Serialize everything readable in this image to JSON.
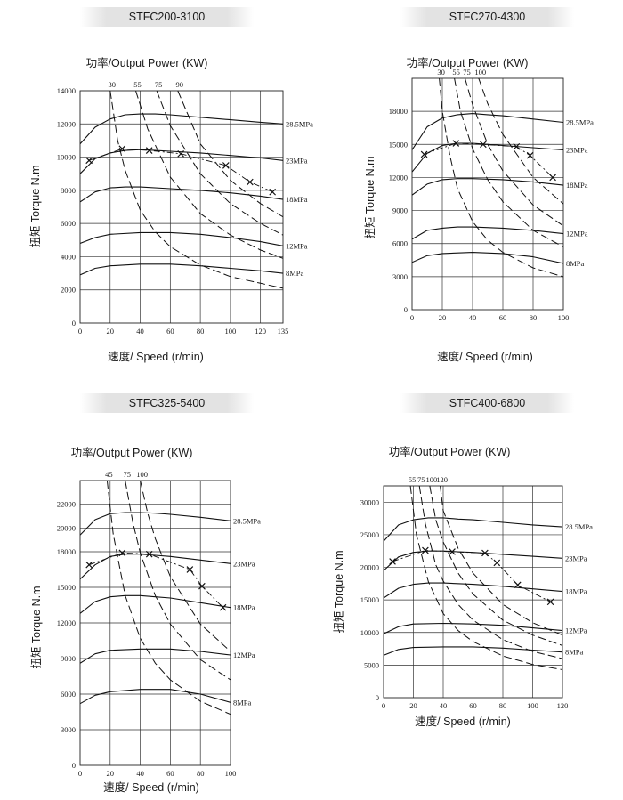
{
  "chart_data": [
    {
      "type": "line",
      "title": "STFC200-3100",
      "subtitle": "功率/Output Power (KW)",
      "xlabel": "速度/ Speed (r/min)",
      "ylabel": "扭矩 Torque N.m",
      "xlim": [
        0,
        135
      ],
      "ylim": [
        0,
        14000
      ],
      "xticks": [
        0,
        20,
        40,
        60,
        80,
        100,
        120,
        135
      ],
      "yticks": [
        0,
        2000,
        4000,
        6000,
        8000,
        10000,
        12000,
        14000
      ],
      "grid": true,
      "pressure_series": [
        {
          "name": "28.5MPa",
          "x": [
            0,
            10,
            20,
            30,
            40,
            50,
            60,
            80,
            100,
            120,
            135
          ],
          "values": [
            10800,
            11800,
            12300,
            12550,
            12600,
            12600,
            12550,
            12400,
            12250,
            12100,
            12000
          ]
        },
        {
          "name": "23MPa",
          "x": [
            0,
            10,
            20,
            30,
            40,
            50,
            60,
            80,
            100,
            120,
            135
          ],
          "values": [
            9000,
            9900,
            10250,
            10400,
            10450,
            10400,
            10350,
            10250,
            10100,
            9950,
            9800
          ]
        },
        {
          "name": "18MPa",
          "x": [
            0,
            10,
            20,
            30,
            40,
            60,
            80,
            100,
            120,
            135
          ],
          "values": [
            7300,
            7900,
            8150,
            8200,
            8200,
            8100,
            8000,
            7850,
            7650,
            7450
          ]
        },
        {
          "name": "12MPa",
          "x": [
            0,
            10,
            20,
            40,
            60,
            80,
            100,
            120,
            135
          ],
          "values": [
            4800,
            5150,
            5350,
            5450,
            5450,
            5350,
            5150,
            4900,
            4650
          ]
        },
        {
          "name": "8MPa",
          "x": [
            0,
            10,
            20,
            40,
            60,
            80,
            100,
            120,
            135
          ],
          "values": [
            2900,
            3300,
            3450,
            3550,
            3550,
            3450,
            3300,
            3150,
            3000
          ]
        }
      ],
      "power_curves": [
        {
          "name": "30",
          "x": [
            20,
            25,
            30,
            40,
            50,
            60,
            80,
            100,
            120,
            135
          ],
          "values": [
            14000,
            11000,
            9200,
            6800,
            5500,
            4600,
            3500,
            2800,
            2400,
            2100
          ]
        },
        {
          "name": "55",
          "x": [
            37,
            45,
            60,
            80,
            100,
            120,
            135
          ],
          "values": [
            14000,
            11700,
            8800,
            6600,
            5300,
            4400,
            3900
          ]
        },
        {
          "name": "75",
          "x": [
            51,
            60,
            80,
            100,
            120,
            135
          ],
          "values": [
            14000,
            11900,
            9000,
            7200,
            6000,
            5300
          ]
        },
        {
          "name": "90",
          "x": [
            65,
            80,
            100,
            120,
            135
          ],
          "values": [
            14000,
            10800,
            8600,
            7200,
            6400
          ]
        }
      ],
      "operating_points": [
        [
          6,
          9800
        ],
        [
          28,
          10500
        ],
        [
          46,
          10400
        ],
        [
          67,
          10200
        ],
        [
          97,
          9500
        ],
        [
          113,
          8500
        ],
        [
          128,
          7900
        ]
      ]
    },
    {
      "type": "line",
      "title": "STFC270-4300",
      "subtitle": "功率/Output Power (KW)",
      "xlabel": "速度/ Speed (r/min)",
      "ylabel": "扭矩 Torque N.m",
      "xlim": [
        0,
        100
      ],
      "ylim": [
        0,
        21000
      ],
      "xticks": [
        0,
        20,
        40,
        60,
        80,
        100
      ],
      "yticks": [
        0,
        3000,
        6000,
        9000,
        12000,
        15000,
        18000
      ],
      "grid": true,
      "pressure_series": [
        {
          "name": "28.5MPa",
          "x": [
            0,
            10,
            20,
            30,
            40,
            50,
            60,
            80,
            100
          ],
          "values": [
            14500,
            16600,
            17400,
            17700,
            17800,
            17700,
            17600,
            17300,
            17000
          ]
        },
        {
          "name": "23MPa",
          "x": [
            0,
            10,
            20,
            30,
            40,
            50,
            60,
            80,
            100
          ],
          "values": [
            12500,
            14200,
            14900,
            15100,
            15100,
            15000,
            14900,
            14700,
            14500
          ]
        },
        {
          "name": "18MPa",
          "x": [
            0,
            10,
            20,
            30,
            40,
            60,
            80,
            100
          ],
          "values": [
            10400,
            11400,
            11800,
            11900,
            11900,
            11800,
            11600,
            11300
          ]
        },
        {
          "name": "12MPa",
          "x": [
            0,
            10,
            20,
            30,
            40,
            60,
            80,
            100
          ],
          "values": [
            6400,
            7200,
            7400,
            7500,
            7500,
            7400,
            7200,
            6900
          ]
        },
        {
          "name": "8MPa",
          "x": [
            0,
            10,
            20,
            40,
            60,
            80,
            100
          ],
          "values": [
            4300,
            4900,
            5100,
            5200,
            5100,
            4800,
            4200
          ]
        }
      ],
      "power_curves": [
        {
          "name": "30",
          "x": [
            18,
            20,
            25,
            30,
            40,
            50,
            60,
            80,
            100
          ],
          "values": [
            21000,
            18000,
            14000,
            11000,
            8000,
            6300,
            5200,
            3800,
            3000
          ]
        },
        {
          "name": "55",
          "x": [
            28,
            32,
            40,
            50,
            60,
            80,
            100
          ],
          "values": [
            21000,
            18000,
            14600,
            11800,
            9800,
            7200,
            5700
          ]
        },
        {
          "name": "75",
          "x": [
            35,
            40,
            50,
            60,
            80,
            100
          ],
          "values": [
            21000,
            18600,
            15000,
            12600,
            9500,
            7600
          ]
        },
        {
          "name": "100",
          "x": [
            44,
            50,
            60,
            80,
            100
          ],
          "values": [
            21000,
            18700,
            15900,
            12000,
            9600
          ]
        }
      ],
      "operating_points": [
        [
          8,
          14100
        ],
        [
          29,
          15100
        ],
        [
          47,
          15000
        ],
        [
          69,
          14800
        ],
        [
          78,
          14000
        ],
        [
          93,
          12000
        ]
      ]
    },
    {
      "type": "line",
      "title": "STFC325-5400",
      "subtitle": "功率/Output Power (KW)",
      "xlabel": "速度/ Speed (r/min)",
      "ylabel": "扭矩 Torque N.m",
      "xlim": [
        0,
        100
      ],
      "ylim": [
        0,
        24000
      ],
      "xticks": [
        0,
        20,
        40,
        60,
        80,
        100
      ],
      "yticks": [
        0,
        3000,
        6000,
        9000,
        12000,
        15000,
        18000,
        20000,
        22000
      ],
      "grid": true,
      "pressure_series": [
        {
          "name": "28.5MPa",
          "x": [
            0,
            10,
            20,
            30,
            40,
            50,
            60,
            80,
            100
          ],
          "values": [
            19400,
            20700,
            21200,
            21300,
            21300,
            21250,
            21150,
            20900,
            20600
          ]
        },
        {
          "name": "23MPa",
          "x": [
            0,
            10,
            20,
            30,
            40,
            50,
            60,
            80,
            100
          ],
          "values": [
            15700,
            16900,
            17600,
            17800,
            17800,
            17700,
            17600,
            17300,
            17000
          ]
        },
        {
          "name": "18MPa",
          "x": [
            0,
            10,
            20,
            30,
            40,
            50,
            60,
            80,
            100
          ],
          "values": [
            12800,
            13800,
            14200,
            14300,
            14300,
            14200,
            14100,
            13700,
            13300
          ]
        },
        {
          "name": "12MPa",
          "x": [
            0,
            10,
            20,
            40,
            60,
            80,
            100
          ],
          "values": [
            8600,
            9400,
            9700,
            9800,
            9800,
            9600,
            9300
          ]
        },
        {
          "name": "8MPa",
          "x": [
            0,
            10,
            20,
            40,
            60,
            80,
            100
          ],
          "values": [
            5200,
            5900,
            6200,
            6400,
            6400,
            6000,
            5300
          ]
        }
      ],
      "power_curves": [
        {
          "name": "45",
          "x": [
            18,
            22,
            30,
            40,
            50,
            60,
            80,
            100
          ],
          "values": [
            24000,
            19500,
            14300,
            10700,
            8600,
            7200,
            5400,
            4300
          ]
        },
        {
          "name": "75",
          "x": [
            30,
            35,
            40,
            50,
            60,
            80,
            100
          ],
          "values": [
            24000,
            20500,
            17900,
            14300,
            11900,
            8900,
            7200
          ]
        },
        {
          "name": "100",
          "x": [
            40,
            45,
            50,
            60,
            80,
            100
          ],
          "values": [
            24000,
            21200,
            19100,
            15900,
            11900,
            9600
          ]
        }
      ],
      "operating_points": [
        [
          6,
          16900
        ],
        [
          28,
          17900
        ],
        [
          46,
          17800
        ],
        [
          73,
          16500
        ],
        [
          81,
          15100
        ],
        [
          95,
          13300
        ]
      ]
    },
    {
      "type": "line",
      "title": "STFC400-6800",
      "subtitle": "功率/Output Power (KW)",
      "xlabel": "速度/ Speed (r/min)",
      "ylabel": "扭矩 Torque N.m",
      "xlim": [
        0,
        120
      ],
      "ylim": [
        0,
        32500
      ],
      "xticks": [
        0,
        20,
        40,
        60,
        80,
        100,
        120
      ],
      "yticks": [
        0,
        5000,
        10000,
        15000,
        20000,
        25000,
        30000
      ],
      "grid": true,
      "pressure_series": [
        {
          "name": "28.5MPa",
          "x": [
            0,
            10,
            20,
            30,
            40,
            50,
            60,
            80,
            100,
            120
          ],
          "values": [
            24000,
            26500,
            27300,
            27600,
            27600,
            27400,
            27300,
            26900,
            26500,
            26200
          ]
        },
        {
          "name": "23MPa",
          "x": [
            0,
            10,
            20,
            30,
            40,
            50,
            60,
            80,
            100,
            120
          ],
          "values": [
            19500,
            21600,
            22300,
            22500,
            22500,
            22400,
            22300,
            22000,
            21700,
            21400
          ]
        },
        {
          "name": "18MPa",
          "x": [
            0,
            10,
            20,
            30,
            40,
            60,
            80,
            100,
            120
          ],
          "values": [
            15300,
            16800,
            17400,
            17600,
            17600,
            17400,
            17100,
            16700,
            16300
          ]
        },
        {
          "name": "12MPa",
          "x": [
            0,
            10,
            20,
            40,
            60,
            80,
            100,
            120
          ],
          "values": [
            9800,
            10900,
            11300,
            11400,
            11300,
            11100,
            10700,
            10300
          ]
        },
        {
          "name": "8MPa",
          "x": [
            0,
            10,
            20,
            40,
            60,
            80,
            100,
            120
          ],
          "values": [
            6500,
            7400,
            7700,
            7800,
            7800,
            7600,
            7300,
            7000
          ]
        }
      ],
      "power_curves": [
        {
          "name": "55",
          "x": [
            18,
            22,
            30,
            40,
            50,
            60,
            80,
            100,
            120
          ],
          "values": [
            32500,
            25000,
            17800,
            12900,
            10300,
            8600,
            6400,
            5100,
            4300
          ]
        },
        {
          "name": "75",
          "x": [
            24,
            28,
            35,
            40,
            50,
            60,
            80,
            100,
            120
          ],
          "values": [
            32500,
            26700,
            20400,
            17900,
            14300,
            11900,
            8900,
            7100,
            6000
          ]
        },
        {
          "name": "100",
          "x": [
            31,
            35,
            40,
            50,
            60,
            80,
            100,
            120
          ],
          "values": [
            32500,
            27300,
            23900,
            19100,
            15900,
            11900,
            9600,
            8000
          ]
        },
        {
          "name": "120",
          "x": [
            38,
            40,
            50,
            60,
            80,
            100,
            120
          ],
          "values": [
            32500,
            28700,
            22900,
            19100,
            14300,
            11500,
            9600
          ]
        }
      ],
      "operating_points": [
        [
          6,
          20900
        ],
        [
          28,
          22600
        ],
        [
          46,
          22400
        ],
        [
          68,
          22200
        ],
        [
          76,
          20700
        ],
        [
          90,
          17300
        ],
        [
          112,
          14700
        ]
      ]
    }
  ]
}
